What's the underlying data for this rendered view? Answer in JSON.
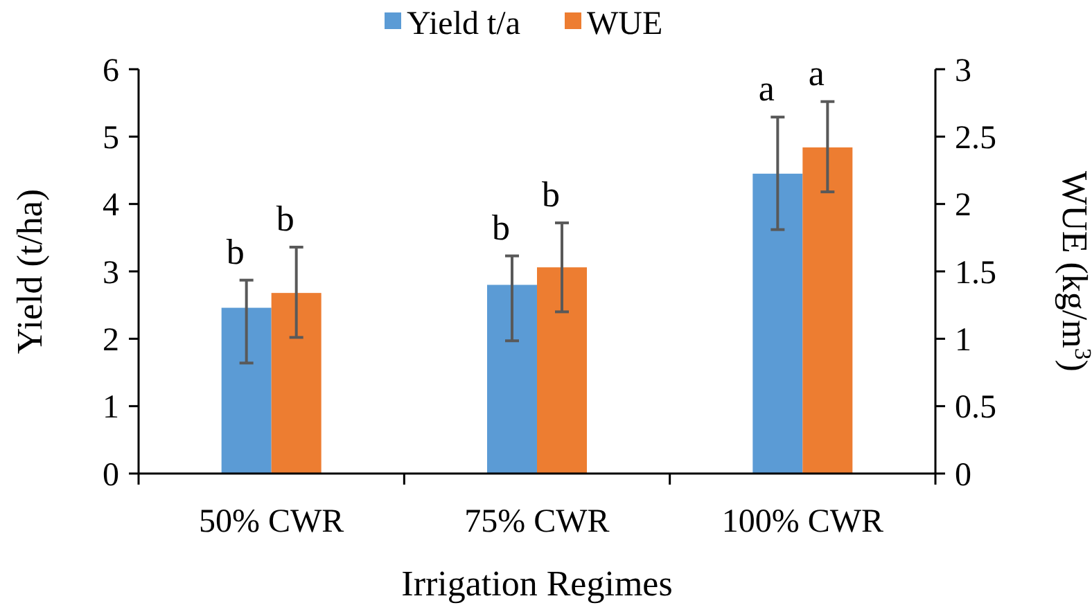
{
  "chart_data": {
    "type": "bar",
    "xlabel": "Irrigation Regimes",
    "ylabel": "Yield (t/ha)",
    "y2label": "WUE (kg/m$^{3}$)",
    "categories": [
      "50% CWR",
      "75% CWR",
      "100% CWR"
    ],
    "series": [
      {
        "name": "Yield t/a",
        "color": "#5b9bd5",
        "values": [
          2.46,
          2.8,
          4.45
        ],
        "errors": [
          [
            1.64,
            2.87
          ],
          [
            1.97,
            3.23
          ],
          [
            3.62,
            5.29
          ]
        ]
      },
      {
        "name": "WUE",
        "color": "#ed7d31",
        "axis": "y2",
        "values": [
          1.34,
          1.53,
          2.42
        ],
        "errors": [
          [
            1.01,
            1.68
          ],
          [
            1.2,
            1.86
          ],
          [
            2.09,
            2.76
          ]
        ]
      }
    ],
    "ylim": [
      0,
      6
    ],
    "yticks": [
      0,
      1,
      2,
      3,
      4,
      5,
      6
    ],
    "y2lim": [
      0,
      3
    ],
    "y2ticks": [
      0,
      0.5,
      1,
      1.5,
      2,
      2.5,
      3
    ],
    "legend": "top",
    "annotations": [
      "b",
      "b",
      "b",
      "b",
      "a",
      "a"
    ]
  }
}
